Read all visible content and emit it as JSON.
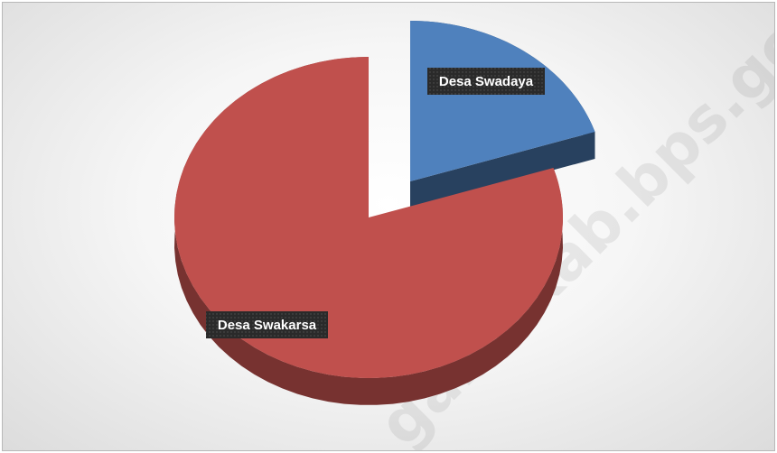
{
  "chart_data": {
    "type": "pie",
    "style": "3d-exploded",
    "categories": [
      "Desa Swadaya",
      "Desa Swakarsa"
    ],
    "values": [
      20,
      80
    ],
    "colors": [
      "#4f81bd",
      "#c0504d"
    ],
    "legend": "none",
    "data_labels": [
      "Desa Swadaya",
      "Desa Swakarsa"
    ]
  },
  "watermark": "garutkab.bps.go.id"
}
